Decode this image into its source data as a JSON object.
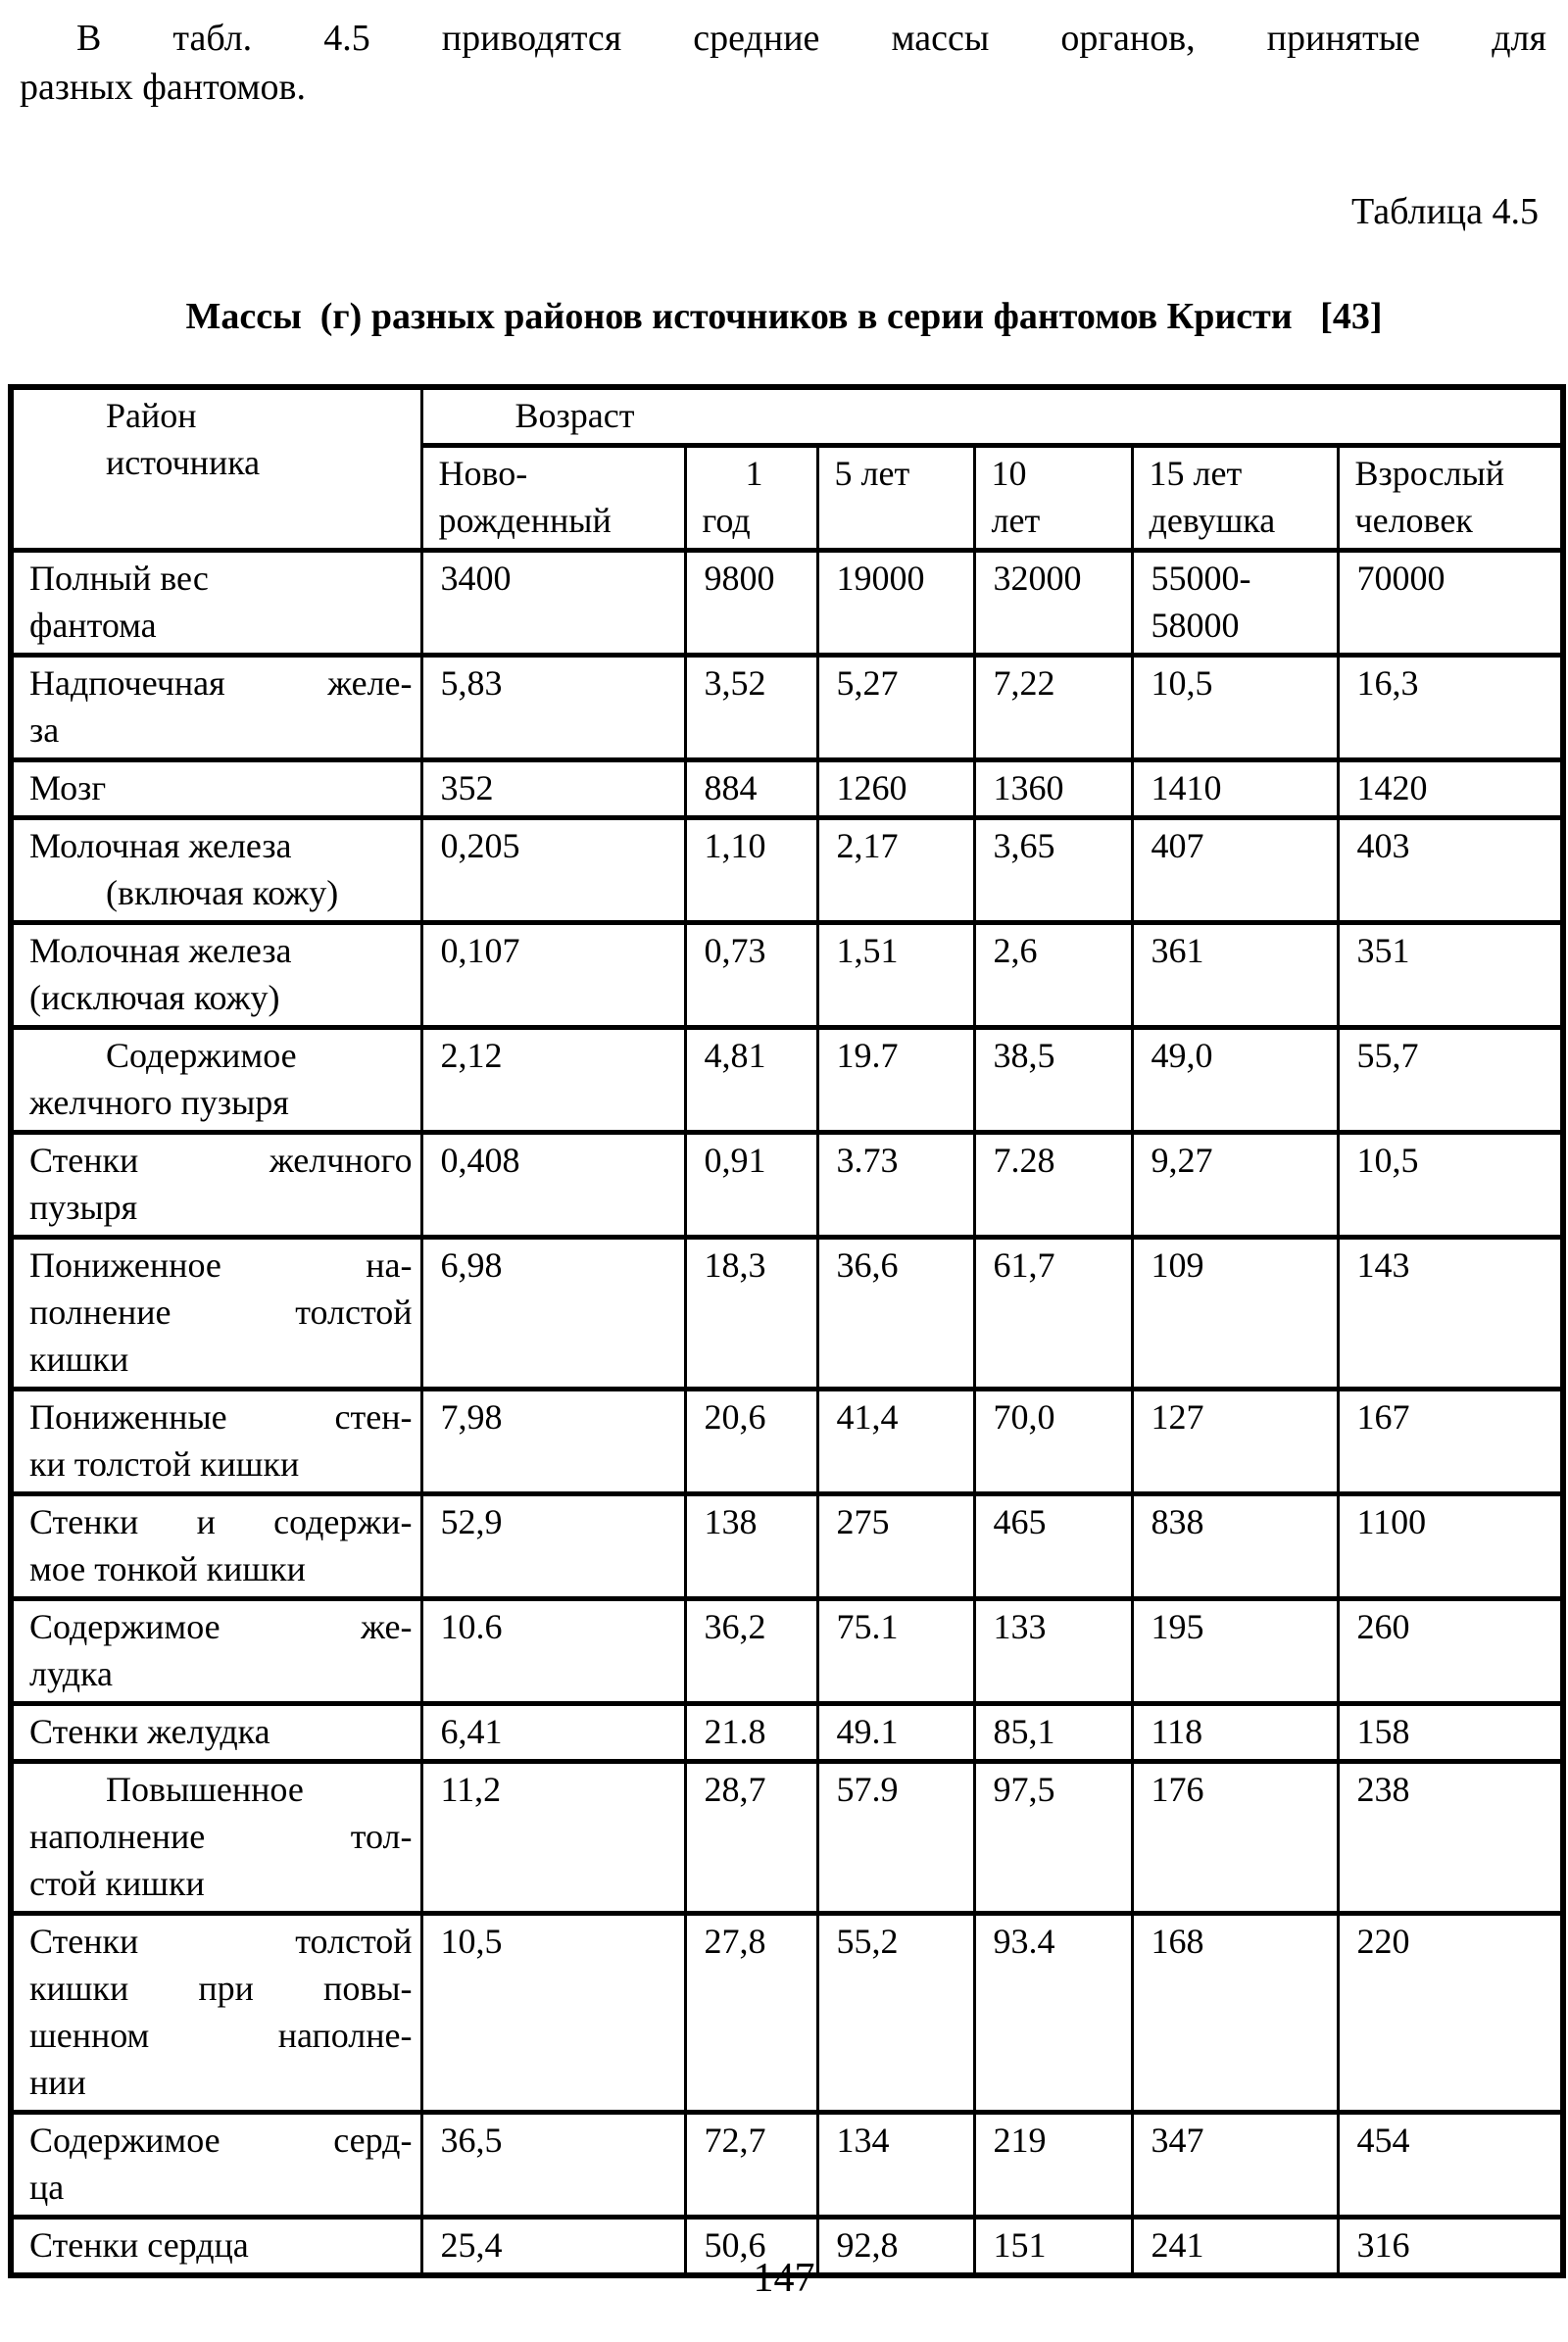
{
  "page": {
    "background": "#ffffff",
    "text_color": "#000000"
  },
  "intro": {
    "lines": [
      "В табл. 4.5 приводятся средние массы органов, принятые для",
      "разных фантомов."
    ]
  },
  "table": {
    "caption_label": "Таблица 4.5",
    "title": "Массы  (г) разных районов источников в серии фантомов Кристи   [43]",
    "header": {
      "row_group_label": {
        "lines": [
          "Район",
          "источника"
        ],
        "fmt": [
          "ind",
          "ind"
        ]
      },
      "age_span_label": {
        "text": "Возраст",
        "fmt": "ind"
      },
      "age_columns": [
        {
          "lines": [
            "Ново-",
            "рожденный"
          ],
          "fmt": [
            "",
            ""
          ]
        },
        {
          "lines": [
            "1",
            "год"
          ],
          "fmt": [
            "ind2",
            ""
          ]
        },
        {
          "lines": [
            "5 лет"
          ],
          "fmt": [
            ""
          ]
        },
        {
          "lines": [
            "10",
            "лет"
          ],
          "fmt": [
            "",
            ""
          ]
        },
        {
          "lines": [
            "15 лет",
            "девушка"
          ],
          "fmt": [
            "",
            ""
          ]
        },
        {
          "lines": [
            "Взрослый",
            "человек"
          ],
          "fmt": [
            "",
            ""
          ]
        }
      ]
    },
    "rows": [
      {
        "label_lines": [
          "Полный вес",
          "фантома"
        ],
        "fmt": [
          "",
          ""
        ],
        "values": [
          "3400",
          "9800",
          "19000",
          "32000",
          "55000-\n58000",
          "70000"
        ]
      },
      {
        "label_lines": [
          "Надпочечная желе-",
          "за"
        ],
        "fmt": [
          "j",
          ""
        ],
        "values": [
          "5,83",
          "3,52",
          "5,27",
          "7,22",
          "10,5",
          "16,3"
        ]
      },
      {
        "label_lines": [
          "Мозг"
        ],
        "fmt": [
          ""
        ],
        "values": [
          "352",
          "884",
          "1260",
          "1360",
          "1410",
          "1420"
        ]
      },
      {
        "label_lines": [
          "Молочная железа",
          "(включая кожу)"
        ],
        "fmt": [
          "",
          "ind"
        ],
        "values": [
          "0,205",
          "1,10",
          "2,17",
          "3,65",
          "407",
          "403"
        ]
      },
      {
        "label_lines": [
          "Молочная железа",
          "(исключая кожу)"
        ],
        "fmt": [
          "",
          ""
        ],
        "values": [
          "0,107",
          "0,73",
          "1,51",
          "2,6",
          "361",
          "351"
        ]
      },
      {
        "label_lines": [
          "Содержимое",
          "желчного пузыря"
        ],
        "fmt": [
          "ind",
          ""
        ],
        "values": [
          "2,12",
          "4,81",
          "19.7",
          "38,5",
          "49,0",
          "55,7"
        ]
      },
      {
        "label_lines": [
          "Стенки желчного",
          "пузыря"
        ],
        "fmt": [
          "j",
          ""
        ],
        "values": [
          "0,408",
          "0,91",
          "3.73",
          "7.28",
          "9,27",
          "10,5"
        ]
      },
      {
        "label_lines": [
          "Пониженное на-",
          "полнение толстой",
          "кишки"
        ],
        "fmt": [
          "j",
          "j",
          ""
        ],
        "values": [
          "6,98",
          "18,3",
          "36,6",
          "61,7",
          "109",
          "143"
        ]
      },
      {
        "label_lines": [
          "Пониженные стен-",
          "ки толстой кишки"
        ],
        "fmt": [
          "j",
          ""
        ],
        "values": [
          "7,98",
          "20,6",
          "41,4",
          "70,0",
          "127",
          "167"
        ]
      },
      {
        "label_lines": [
          "Стенки и содержи-",
          "мое тонкой кишки"
        ],
        "fmt": [
          "j",
          ""
        ],
        "values": [
          "52,9",
          "138",
          "275",
          "465",
          "838",
          "1100"
        ]
      },
      {
        "label_lines": [
          "Содержимое же-",
          "лудка"
        ],
        "fmt": [
          "j",
          ""
        ],
        "values": [
          "10.6",
          "36,2",
          "75.1",
          "133",
          "195",
          "260"
        ]
      },
      {
        "label_lines": [
          "Стенки желудка"
        ],
        "fmt": [
          ""
        ],
        "values": [
          "6,41",
          "21.8",
          "49.1",
          "85,1",
          "118",
          "158"
        ]
      },
      {
        "label_lines": [
          "Повышенное",
          "наполнение тол-",
          "стой кишки"
        ],
        "fmt": [
          "ind",
          "j",
          ""
        ],
        "values": [
          "11,2",
          "28,7",
          "57.9",
          "97,5",
          "176",
          "238"
        ]
      },
      {
        "label_lines": [
          "Стенки толстой",
          "кишки при повы-",
          "шенном наполне-",
          "нии"
        ],
        "fmt": [
          "j",
          "j",
          "j",
          ""
        ],
        "values": [
          "10,5",
          "27,8",
          "55,2",
          "93.4",
          "168",
          "220"
        ]
      },
      {
        "label_lines": [
          "Содержимое серд-",
          "ца"
        ],
        "fmt": [
          "j",
          ""
        ],
        "values": [
          "36,5",
          "72,7",
          "134",
          "219",
          "347",
          "454"
        ]
      },
      {
        "label_lines": [
          "Стенки сердца"
        ],
        "fmt": [
          ""
        ],
        "values": [
          "25,4",
          "50,6",
          "92,8",
          "151",
          "241",
          "316"
        ]
      }
    ]
  },
  "footer": {
    "page_number": "147"
  }
}
